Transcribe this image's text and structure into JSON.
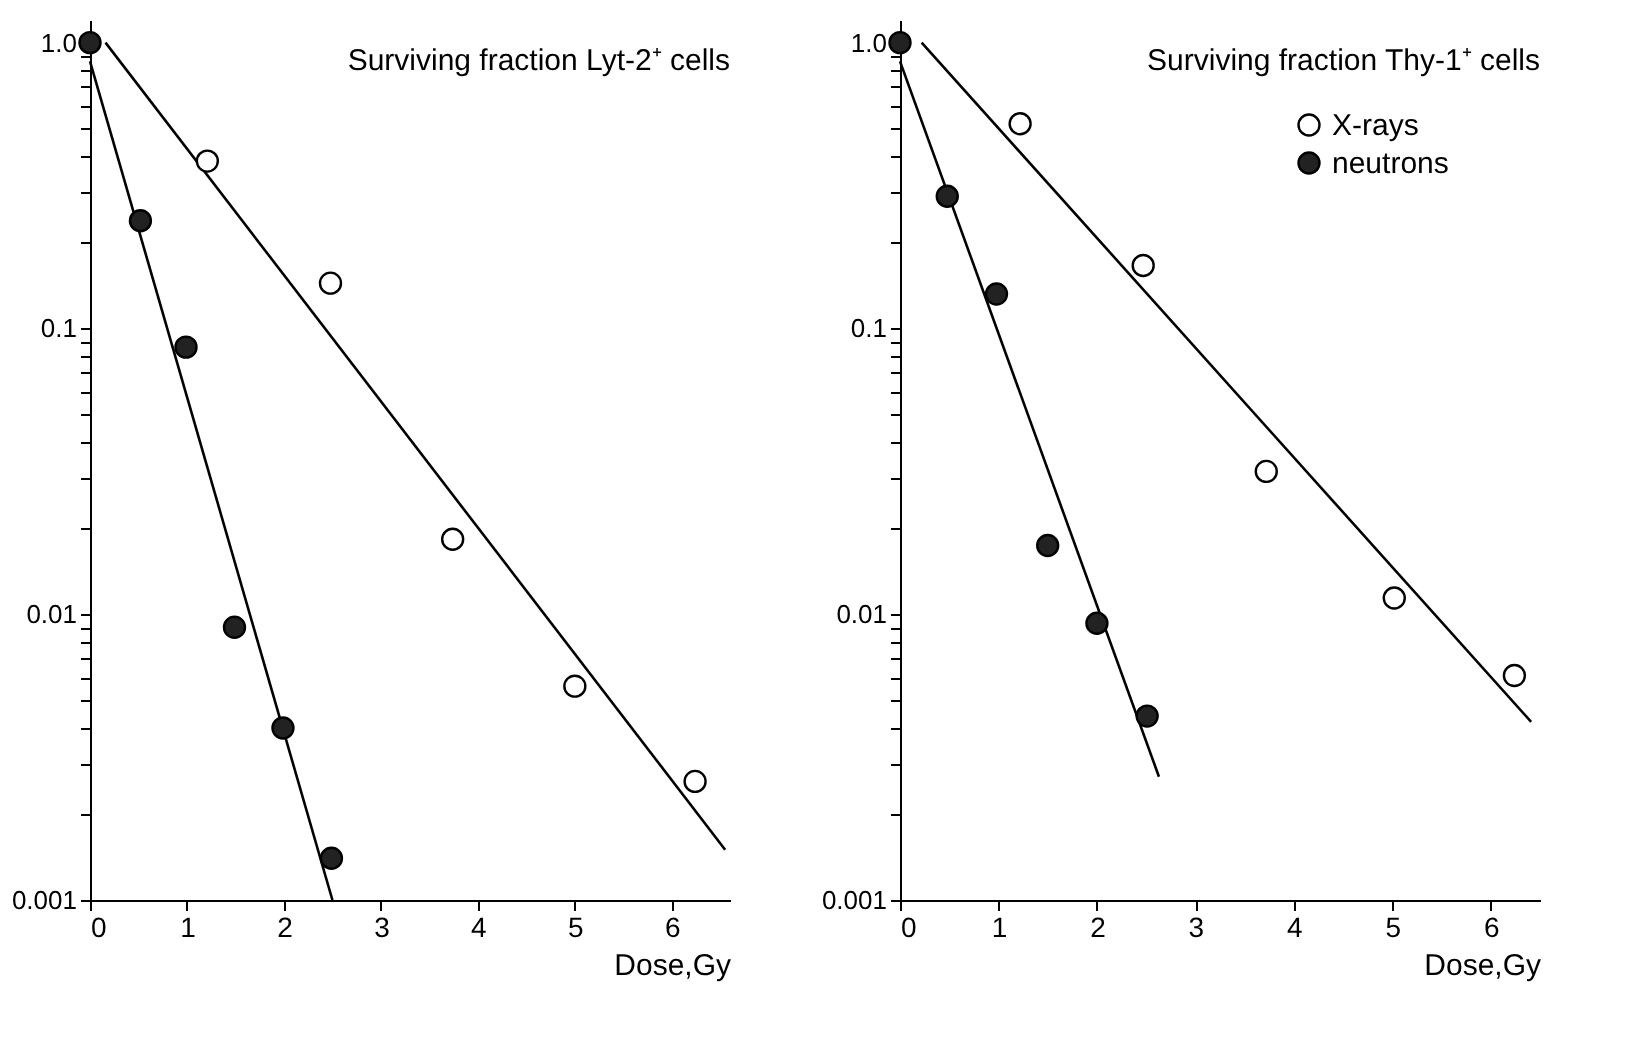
{
  "chart_data": [
    {
      "type": "scatter",
      "title": "Surviving fraction Lyt-2⁺ cells",
      "xlabel": "Dose,Gy",
      "log": "y",
      "grid": false,
      "legend": false,
      "marker": "circle",
      "xlim": [
        0,
        6.6
      ],
      "ylim": [
        0.001,
        1.2
      ],
      "xticks": [
        0,
        1,
        2,
        3,
        4,
        5,
        6
      ],
      "yticks": [
        {
          "value": 0.001,
          "label": "0.001"
        },
        {
          "value": 0.002,
          "label": null
        },
        {
          "value": 0.003,
          "label": null
        },
        {
          "value": 0.004,
          "label": null
        },
        {
          "value": 0.005,
          "label": null
        },
        {
          "value": 0.006,
          "label": null
        },
        {
          "value": 0.007,
          "label": null
        },
        {
          "value": 0.008,
          "label": null
        },
        {
          "value": 0.009,
          "label": null
        },
        {
          "value": 0.01,
          "label": "0.01"
        },
        {
          "value": 0.02,
          "label": null
        },
        {
          "value": 0.03,
          "label": null
        },
        {
          "value": 0.04,
          "label": null
        },
        {
          "value": 0.05,
          "label": null
        },
        {
          "value": 0.06,
          "label": null
        },
        {
          "value": 0.07,
          "label": null
        },
        {
          "value": 0.08,
          "label": null
        },
        {
          "value": 0.09,
          "label": null
        },
        {
          "value": 0.1,
          "label": "0.1"
        },
        {
          "value": 0.2,
          "label": null
        },
        {
          "value": 0.3,
          "label": null
        },
        {
          "value": 0.4,
          "label": null
        },
        {
          "value": 0.5,
          "label": null
        },
        {
          "value": 0.6,
          "label": null
        },
        {
          "value": 0.7,
          "label": null
        },
        {
          "value": 0.8,
          "label": null
        },
        {
          "value": 0.9,
          "label": null
        },
        {
          "value": 1,
          "label": "1.0"
        }
      ],
      "series": [
        {
          "type": "line",
          "marker": "none",
          "line_style": "solid",
          "color": "#000000",
          "x": [
            0.16,
            6.55
          ],
          "values": [
            1.0,
            0.0015
          ]
        },
        {
          "type": "line",
          "marker": "none",
          "line_style": "solid",
          "color": "#000000",
          "x": [
            0,
            2.5
          ],
          "values": [
            0.86,
            0.001
          ]
        },
        {
          "color": "#ffffff",
          "x": [
            1.21,
            2.48,
            3.74,
            5.0,
            6.24
          ],
          "values": [
            0.385,
            0.144,
            0.0183,
            0.0056,
            0.0026
          ]
        },
        {
          "color": "#222222",
          "x": [
            0,
            0.52,
            0.99,
            1.49,
            1.99,
            2.49
          ],
          "values": [
            1.0,
            0.238,
            0.086,
            0.009,
            0.004,
            0.0014
          ]
        }
      ]
    },
    {
      "type": "scatter",
      "title": "Surviving fraction Thy-1⁺ cells",
      "xlabel": "Dose,Gy",
      "log": "y",
      "grid": false,
      "legend": "top right",
      "marker": "circle",
      "xlim": [
        0,
        6.5
      ],
      "ylim": [
        0.001,
        1.2
      ],
      "xticks": [
        0,
        1,
        2,
        3,
        4,
        5,
        6
      ],
      "yticks": [
        {
          "value": 0.001,
          "label": "0.001"
        },
        {
          "value": 0.002,
          "label": null
        },
        {
          "value": 0.003,
          "label": null
        },
        {
          "value": 0.004,
          "label": null
        },
        {
          "value": 0.005,
          "label": null
        },
        {
          "value": 0.006,
          "label": null
        },
        {
          "value": 0.007,
          "label": null
        },
        {
          "value": 0.008,
          "label": null
        },
        {
          "value": 0.009,
          "label": null
        },
        {
          "value": 0.01,
          "label": "0.01"
        },
        {
          "value": 0.02,
          "label": null
        },
        {
          "value": 0.03,
          "label": null
        },
        {
          "value": 0.04,
          "label": null
        },
        {
          "value": 0.05,
          "label": null
        },
        {
          "value": 0.06,
          "label": null
        },
        {
          "value": 0.07,
          "label": null
        },
        {
          "value": 0.08,
          "label": null
        },
        {
          "value": 0.09,
          "label": null
        },
        {
          "value": 0.1,
          "label": "0.1"
        },
        {
          "value": 0.2,
          "label": null
        },
        {
          "value": 0.3,
          "label": null
        },
        {
          "value": 0.4,
          "label": null
        },
        {
          "value": 0.5,
          "label": null
        },
        {
          "value": 0.6,
          "label": null
        },
        {
          "value": 0.7,
          "label": null
        },
        {
          "value": 0.8,
          "label": null
        },
        {
          "value": 0.9,
          "label": null
        },
        {
          "value": 1,
          "label": "1.0"
        }
      ],
      "series": [
        {
          "type": "line",
          "marker": "none",
          "line_style": "solid",
          "color": "#000000",
          "x": [
            0.22,
            6.41
          ],
          "values": [
            1.0,
            0.0042
          ]
        },
        {
          "type": "line",
          "marker": "none",
          "line_style": "solid",
          "color": "#000000",
          "x": [
            0,
            2.63
          ],
          "values": [
            0.86,
            0.0027
          ]
        },
        {
          "name": "X-rays",
          "color": "#ffffff",
          "x": [
            1.22,
            2.47,
            3.72,
            5.02,
            6.24
          ],
          "values": [
            0.52,
            0.166,
            0.0316,
            0.0114,
            0.0061
          ]
        },
        {
          "name": "neutrons",
          "color": "#222222",
          "x": [
            0,
            0.48,
            0.98,
            1.5,
            2.0,
            2.51
          ],
          "values": [
            1.0,
            0.29,
            0.132,
            0.0174,
            0.0093,
            0.0044
          ]
        }
      ]
    }
  ]
}
